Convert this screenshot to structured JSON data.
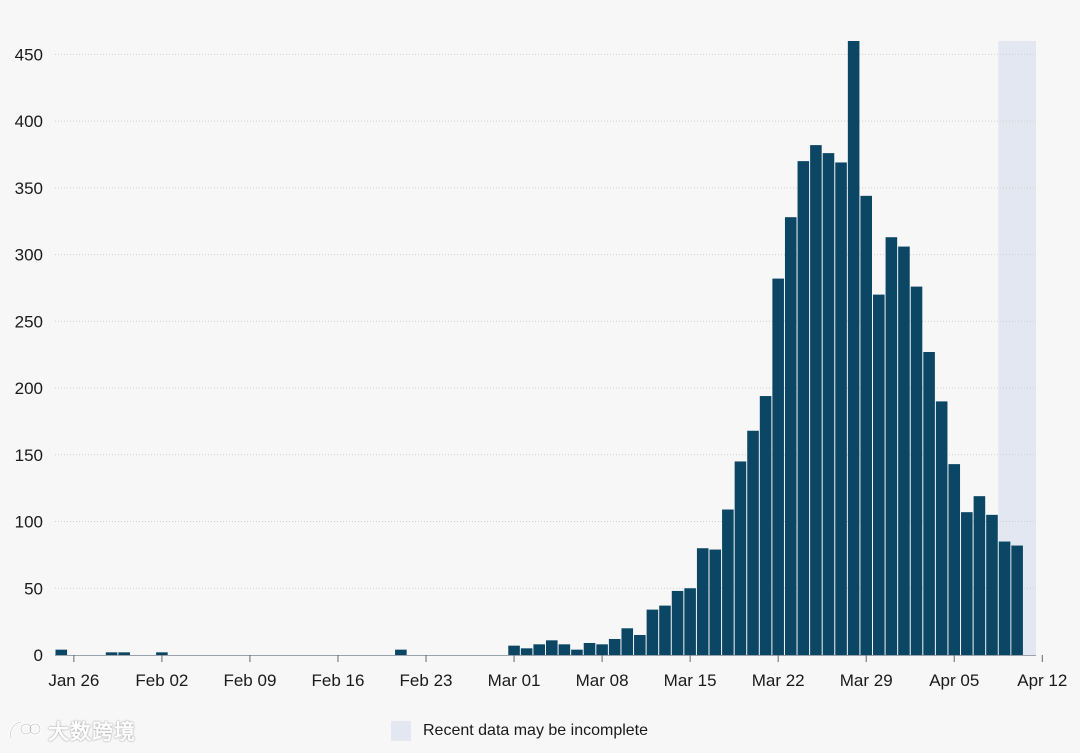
{
  "chart_data": {
    "type": "bar",
    "ylim": [
      0,
      460
    ],
    "y_ticks": [
      0,
      50,
      100,
      150,
      200,
      250,
      300,
      350,
      400,
      450
    ],
    "x_start_date": "Jan 25",
    "x_tick_labels": [
      "Jan 26",
      "Feb 02",
      "Feb 09",
      "Feb 16",
      "Feb 23",
      "Mar 01",
      "Mar 08",
      "Mar 15",
      "Mar 22",
      "Mar 29",
      "Apr 05",
      "Apr 12"
    ],
    "grid": "horizontal dotted",
    "values": [
      4,
      0,
      0,
      0,
      2,
      2,
      0,
      0,
      2,
      0,
      0,
      0,
      0,
      0,
      0,
      0,
      0,
      0,
      0,
      0,
      0,
      0,
      0,
      0,
      0,
      0,
      0,
      4,
      0,
      0,
      0,
      0,
      0,
      0,
      0,
      0,
      7,
      5,
      8,
      11,
      8,
      4,
      9,
      8,
      12,
      20,
      15,
      34,
      37,
      48,
      50,
      80,
      79,
      109,
      145,
      168,
      194,
      282,
      328,
      370,
      382,
      376,
      369,
      460,
      344,
      270,
      313,
      306,
      276,
      227,
      190,
      143,
      107,
      119,
      105,
      85,
      82
    ],
    "incomplete_from_index": 75,
    "bar_color": "#0b4665",
    "shade_color": "#e3e7f1"
  },
  "legend": {
    "label": "Recent data may be incomplete"
  },
  "watermark": {
    "text": "大数跨境"
  }
}
